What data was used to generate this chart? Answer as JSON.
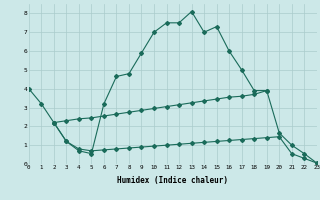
{
  "xlabel": "Humidex (Indice chaleur)",
  "bg_color": "#cce8e8",
  "grid_color": "#aacccc",
  "line_color": "#1a6b5a",
  "xlim": [
    0,
    23
  ],
  "ylim": [
    0,
    8.5
  ],
  "line1_x": [
    0,
    1,
    2,
    3,
    4,
    5,
    6,
    7,
    8,
    9,
    10,
    11,
    12,
    13,
    14,
    15,
    16,
    17,
    18,
    19
  ],
  "line1_y": [
    4.0,
    3.2,
    2.2,
    1.2,
    0.7,
    0.55,
    3.2,
    4.65,
    4.8,
    5.9,
    7.0,
    7.5,
    7.5,
    8.1,
    7.0,
    7.3,
    6.0,
    5.0,
    3.9,
    3.9
  ],
  "line2_x": [
    2,
    3,
    4,
    5,
    6,
    7,
    8,
    9,
    10,
    11,
    12,
    13,
    14,
    15,
    16,
    17,
    18,
    19,
    20,
    21,
    22,
    23
  ],
  "line2_y": [
    2.2,
    2.3,
    2.4,
    2.45,
    2.55,
    2.65,
    2.75,
    2.85,
    2.95,
    3.05,
    3.15,
    3.25,
    3.35,
    3.45,
    3.55,
    3.6,
    3.7,
    3.9,
    1.65,
    1.0,
    0.55,
    0.05
  ],
  "line3_x": [
    2,
    3,
    4,
    5,
    6,
    7,
    8,
    9,
    10,
    11,
    12,
    13,
    14,
    15,
    16,
    17,
    18,
    19,
    20,
    21,
    22,
    23
  ],
  "line3_y": [
    2.2,
    1.2,
    0.8,
    0.7,
    0.75,
    0.8,
    0.85,
    0.9,
    0.95,
    1.0,
    1.05,
    1.1,
    1.15,
    1.2,
    1.25,
    1.3,
    1.35,
    1.4,
    1.45,
    0.55,
    0.3,
    0.05
  ]
}
